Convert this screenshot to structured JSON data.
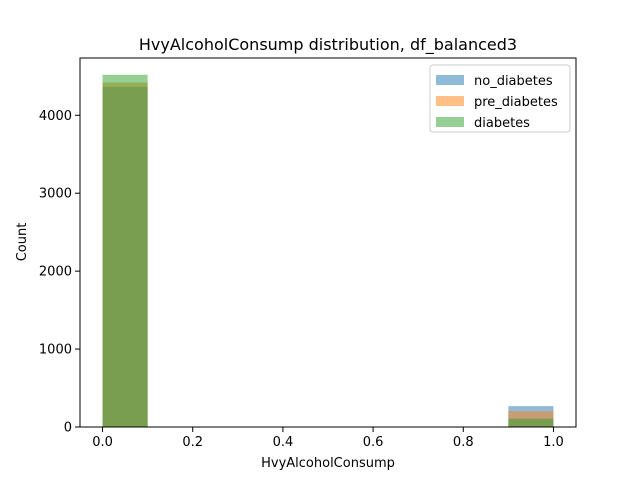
{
  "chart_data": {
    "type": "bar",
    "title": "HvyAlcoholConsump distribution, df_balanced3",
    "xlabel": "HvyAlcoholConsump",
    "ylabel": "Count",
    "xlim": [
      -0.05,
      1.05
    ],
    "ylim": [
      0,
      4735
    ],
    "xticks": [
      0.0,
      0.2,
      0.4,
      0.6,
      0.8,
      1.0
    ],
    "xtick_labels": [
      "0.0",
      "0.2",
      "0.4",
      "0.6",
      "0.8",
      "1.0"
    ],
    "yticks": [
      0,
      1000,
      2000,
      3000,
      4000
    ],
    "ytick_labels": [
      "0",
      "1000",
      "2000",
      "3000",
      "4000"
    ],
    "bins": [
      [
        0.0,
        0.1
      ],
      [
        0.9,
        1.0
      ]
    ],
    "series": [
      {
        "name": "no_diabetes",
        "color": "#1f77b4",
        "alpha": 0.5,
        "values": [
          4365,
          268
        ]
      },
      {
        "name": "pre_diabetes",
        "color": "#ff7f0e",
        "alpha": 0.5,
        "values": [
          4420,
          205
        ]
      },
      {
        "name": "diabetes",
        "color": "#2ca02c",
        "alpha": 0.5,
        "values": [
          4520,
          105
        ]
      }
    ],
    "grid": false,
    "legend_position": "top-right"
  }
}
